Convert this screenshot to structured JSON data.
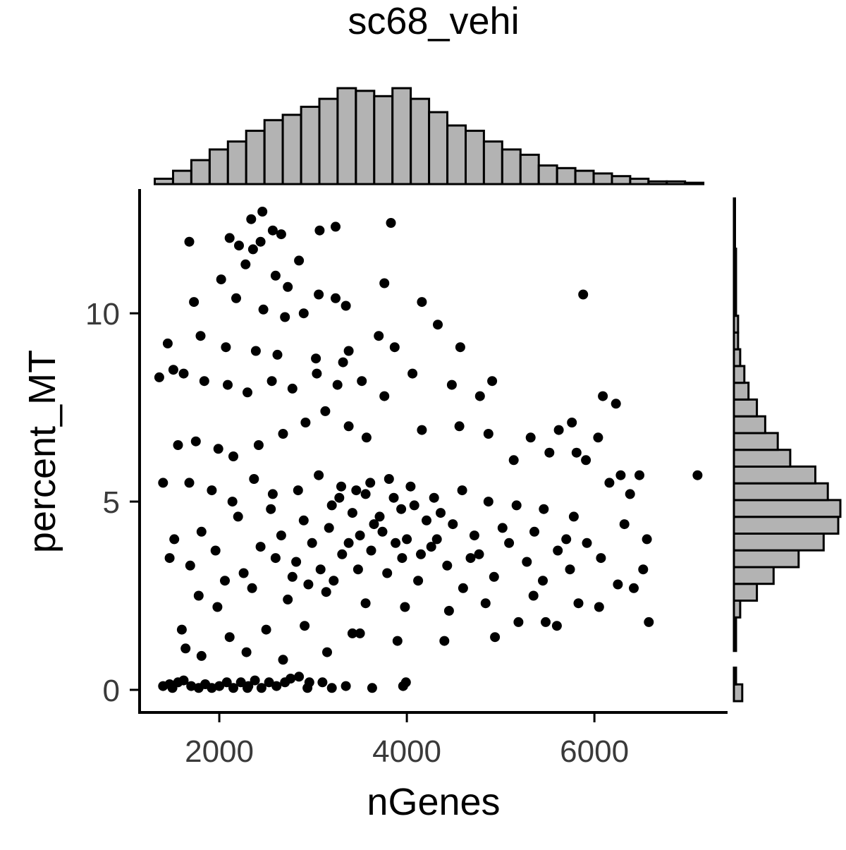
{
  "chart_data": {
    "type": "scatter",
    "title": "sc68_vehi",
    "xlabel": "nGenes",
    "ylabel": "percent_MT",
    "xlim": [
      1150,
      7420
    ],
    "ylim": [
      -0.6,
      13.3
    ],
    "x_ticks": [
      {
        "value": 2000,
        "label": "2000"
      },
      {
        "value": 4000,
        "label": "4000"
      },
      {
        "value": 6000,
        "label": "6000"
      }
    ],
    "y_ticks": [
      {
        "value": 0,
        "label": "0"
      },
      {
        "value": 5,
        "label": "5"
      },
      {
        "value": 10,
        "label": "10"
      }
    ],
    "grid": false,
    "legend": "none",
    "colors": {
      "points": "#000000",
      "hist_fill": "#b3b3b3",
      "hist_stroke": "#000000"
    },
    "series": [
      {
        "points": [
          [
            2460,
            12.7
          ],
          [
            3830,
            12.4
          ],
          [
            2340,
            12.5
          ],
          [
            3240,
            12.3
          ],
          [
            1680,
            11.9
          ],
          [
            2110,
            12.0
          ],
          [
            3070,
            12.2
          ],
          [
            2440,
            11.9
          ],
          [
            2660,
            12.1
          ],
          [
            2570,
            12.2
          ],
          [
            2210,
            11.8
          ],
          [
            2360,
            11.7
          ],
          [
            2850,
            11.4
          ],
          [
            2280,
            11.3
          ],
          [
            2600,
            11.0
          ],
          [
            2020,
            10.9
          ],
          [
            2730,
            10.7
          ],
          [
            3060,
            10.5
          ],
          [
            3240,
            10.4
          ],
          [
            3350,
            10.2
          ],
          [
            1730,
            10.3
          ],
          [
            2180,
            10.4
          ],
          [
            2470,
            10.1
          ],
          [
            2700,
            9.9
          ],
          [
            2900,
            10.0
          ],
          [
            4160,
            10.3
          ],
          [
            3760,
            10.8
          ],
          [
            5880,
            10.5
          ],
          [
            4330,
            9.7
          ],
          [
            3700,
            9.4
          ],
          [
            1450,
            9.2
          ],
          [
            1800,
            9.4
          ],
          [
            2070,
            9.1
          ],
          [
            2390,
            9.0
          ],
          [
            2620,
            8.9
          ],
          [
            3030,
            8.8
          ],
          [
            3380,
            9.0
          ],
          [
            3870,
            9.1
          ],
          [
            4570,
            9.1
          ],
          [
            3320,
            8.7
          ],
          [
            1360,
            8.3
          ],
          [
            1510,
            8.5
          ],
          [
            1620,
            8.4
          ],
          [
            1840,
            8.2
          ],
          [
            2090,
            8.1
          ],
          [
            2300,
            7.9
          ],
          [
            2560,
            8.2
          ],
          [
            2780,
            8.0
          ],
          [
            3040,
            8.4
          ],
          [
            3260,
            8.1
          ],
          [
            3520,
            8.2
          ],
          [
            3760,
            7.8
          ],
          [
            4060,
            8.4
          ],
          [
            4480,
            8.1
          ],
          [
            4910,
            8.2
          ],
          [
            4780,
            7.8
          ],
          [
            6090,
            7.8
          ],
          [
            6230,
            7.6
          ],
          [
            5760,
            7.1
          ],
          [
            5620,
            6.9
          ],
          [
            1560,
            6.5
          ],
          [
            1750,
            6.6
          ],
          [
            1990,
            6.4
          ],
          [
            2150,
            6.2
          ],
          [
            2420,
            6.5
          ],
          [
            2680,
            6.8
          ],
          [
            2920,
            7.1
          ],
          [
            3130,
            7.4
          ],
          [
            3380,
            7.0
          ],
          [
            3570,
            6.7
          ],
          [
            4160,
            6.9
          ],
          [
            4560,
            7.0
          ],
          [
            4870,
            6.8
          ],
          [
            5320,
            6.7
          ],
          [
            5520,
            6.3
          ],
          [
            5910,
            6.1
          ],
          [
            6040,
            6.7
          ],
          [
            5140,
            6.1
          ],
          [
            5810,
            6.3
          ],
          [
            6280,
            5.7
          ],
          [
            1400,
            5.5
          ],
          [
            1680,
            5.5
          ],
          [
            1920,
            5.3
          ],
          [
            2140,
            5.0
          ],
          [
            2370,
            5.6
          ],
          [
            2570,
            5.2
          ],
          [
            2840,
            5.3
          ],
          [
            3060,
            5.7
          ],
          [
            3300,
            5.4
          ],
          [
            3560,
            5.2
          ],
          [
            3810,
            5.6
          ],
          [
            4040,
            5.4
          ],
          [
            4290,
            5.1
          ],
          [
            4590,
            5.3
          ],
          [
            4870,
            5.0
          ],
          [
            5170,
            4.9
          ],
          [
            5460,
            4.8
          ],
          [
            5780,
            4.6
          ],
          [
            6160,
            5.5
          ],
          [
            6480,
            5.7
          ],
          [
            7100,
            5.7
          ],
          [
            6380,
            5.2
          ],
          [
            6320,
            4.4
          ],
          [
            6560,
            4.0
          ],
          [
            6520,
            3.2
          ],
          [
            6580,
            1.8
          ],
          [
            6420,
            2.7
          ],
          [
            6250,
            2.8
          ],
          [
            6050,
            2.2
          ],
          [
            5830,
            2.3
          ],
          [
            5480,
            1.8
          ],
          [
            5600,
            1.7
          ],
          [
            5190,
            1.8
          ],
          [
            4940,
            1.4
          ],
          [
            4400,
            1.3
          ],
          [
            3900,
            1.3
          ],
          [
            3420,
            1.5
          ],
          [
            2910,
            1.7
          ],
          [
            2500,
            1.6
          ],
          [
            2110,
            1.4
          ],
          [
            1640,
            1.1
          ],
          [
            1810,
            0.9
          ],
          [
            2290,
            1.0
          ],
          [
            2680,
            0.8
          ],
          [
            3150,
            1.0
          ],
          [
            3500,
            1.5
          ],
          [
            1600,
            1.6
          ],
          [
            1470,
            3.5
          ],
          [
            1520,
            4.0
          ],
          [
            1690,
            3.3
          ],
          [
            1810,
            4.2
          ],
          [
            1960,
            3.7
          ],
          [
            2060,
            2.9
          ],
          [
            2260,
            3.1
          ],
          [
            2440,
            3.8
          ],
          [
            2660,
            4.1
          ],
          [
            2820,
            3.4
          ],
          [
            2990,
            3.9
          ],
          [
            3170,
            4.3
          ],
          [
            3310,
            3.6
          ],
          [
            3480,
            3.2
          ],
          [
            3650,
            4.4
          ],
          [
            3790,
            3.1
          ],
          [
            3950,
            3.5
          ],
          [
            4120,
            2.9
          ],
          [
            4260,
            3.8
          ],
          [
            4430,
            3.3
          ],
          [
            4600,
            2.7
          ],
          [
            4770,
            3.6
          ],
          [
            4930,
            3.0
          ],
          [
            5090,
            3.9
          ],
          [
            5280,
            3.4
          ],
          [
            5450,
            2.9
          ],
          [
            5610,
            3.7
          ],
          [
            5740,
            3.2
          ],
          [
            5920,
            3.9
          ],
          [
            6070,
            3.5
          ],
          [
            5350,
            2.5
          ],
          [
            4840,
            2.3
          ],
          [
            4450,
            2.1
          ],
          [
            3980,
            2.2
          ],
          [
            3560,
            2.3
          ],
          [
            3140,
            2.6
          ],
          [
            2730,
            2.4
          ],
          [
            2350,
            2.7
          ],
          [
            1980,
            2.2
          ],
          [
            1780,
            2.5
          ],
          [
            2200,
            4.6
          ],
          [
            2550,
            4.8
          ],
          [
            2900,
            4.5
          ],
          [
            3200,
            4.9
          ],
          [
            3420,
            4.7
          ],
          [
            3710,
            4.6
          ],
          [
            3940,
            4.8
          ],
          [
            4210,
            4.5
          ],
          [
            4490,
            4.4
          ],
          [
            4720,
            4.1
          ],
          [
            5020,
            4.3
          ],
          [
            5360,
            4.2
          ],
          [
            5700,
            4.0
          ],
          [
            1400,
            0.1
          ],
          [
            1470,
            0.15
          ],
          [
            1560,
            0.2
          ],
          [
            1620,
            0.25
          ],
          [
            1700,
            0.1
          ],
          [
            1780,
            0.05
          ],
          [
            1850,
            0.15
          ],
          [
            1920,
            0.05
          ],
          [
            2000,
            0.1
          ],
          [
            2080,
            0.2
          ],
          [
            2150,
            0.05
          ],
          [
            2230,
            0.2
          ],
          [
            2310,
            0.1
          ],
          [
            2380,
            0.25
          ],
          [
            2450,
            0.05
          ],
          [
            2530,
            0.2
          ],
          [
            2610,
            0.1
          ],
          [
            2700,
            0.2
          ],
          [
            2760,
            0.3
          ],
          [
            2850,
            0.35
          ],
          [
            2960,
            0.2
          ],
          [
            3100,
            0.2
          ],
          [
            3350,
            0.1
          ],
          [
            3630,
            0.05
          ],
          [
            3960,
            0.1
          ],
          [
            3990,
            0.2
          ],
          [
            2940,
            0.05
          ],
          [
            3200,
            0.05
          ],
          [
            2300,
            0.05
          ],
          [
            1500,
            0.05
          ],
          [
            3080,
            3.2
          ],
          [
            3220,
            2.9
          ],
          [
            3380,
            3.9
          ],
          [
            3500,
            4.1
          ],
          [
            3620,
            3.7
          ],
          [
            3740,
            4.2
          ],
          [
            3880,
            3.9
          ],
          [
            4000,
            4.0
          ],
          [
            4150,
            3.6
          ],
          [
            4320,
            4.0
          ],
          [
            2600,
            3.5
          ],
          [
            2780,
            3.0
          ],
          [
            2950,
            2.8
          ],
          [
            3280,
            5.1
          ],
          [
            3460,
            5.3
          ],
          [
            3610,
            5.5
          ],
          [
            3860,
            5.1
          ],
          [
            4080,
            4.9
          ],
          [
            4360,
            4.7
          ],
          [
            4680,
            3.5
          ]
        ]
      }
    ],
    "histogram_x": {
      "bin_start": 1312,
      "bin_width": 195,
      "counts": [
        2,
        5,
        9,
        13,
        16,
        20,
        24,
        26,
        29,
        32,
        36,
        35,
        33,
        36,
        32,
        27,
        22,
        20,
        16,
        13,
        11,
        7,
        6,
        5,
        4,
        3,
        2,
        1,
        1,
        0.5
      ]
    },
    "histogram_y": {
      "bin_start": -0.3,
      "bin_width": 0.445,
      "counts": [
        4,
        1,
        0,
        1,
        1,
        3,
        11,
        19,
        31,
        43,
        50,
        51,
        45,
        39,
        27,
        21,
        15,
        11,
        7,
        5,
        3,
        2,
        2,
        1,
        1,
        1,
        1,
        0.5,
        0.5,
        0.5
      ]
    }
  }
}
